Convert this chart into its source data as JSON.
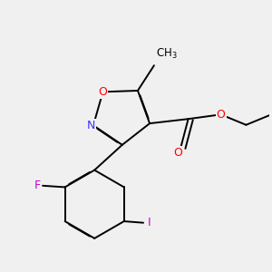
{
  "background_color": "#f0f0f0",
  "bond_color": "#000000",
  "atom_colors": {
    "O": "#ff0000",
    "N": "#3333ff",
    "F": "#cc00cc",
    "I": "#cc00cc",
    "C": "#000000"
  },
  "lw": 1.4,
  "figsize": [
    3.0,
    3.0
  ],
  "dpi": 100
}
